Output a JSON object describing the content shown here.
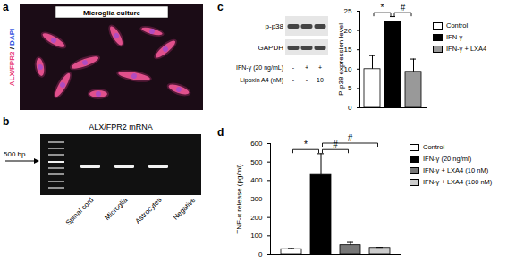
{
  "panel_a": {
    "letter": "a",
    "title": "Microglia culture",
    "stain": {
      "text": "ALX/FPR2",
      "color": "#e8407a"
    },
    "separator": "/",
    "counterstain": {
      "text": "DAPI",
      "color": "#3050e0"
    }
  },
  "panel_b": {
    "letter": "b",
    "title": "ALX/FPR2 mRNA",
    "marker": "500 bp",
    "lanes": [
      "Spinal cord",
      "Microglia",
      "Astrocytes",
      "Negative"
    ]
  },
  "panel_c": {
    "letter": "c",
    "blot_rows": [
      "p-p38",
      "GAPDH"
    ],
    "treatments": [
      {
        "label": "IFN-γ (20 ng/mL)",
        "lanes": [
          "-",
          "+",
          "+"
        ]
      },
      {
        "label": "Lipoxin A4 (nM)",
        "lanes": [
          "-",
          "-",
          "10"
        ]
      }
    ]
  },
  "panel_d": {
    "letter": "d"
  },
  "chart_data": [
    {
      "type": "bar",
      "ylabel": "P-p38 expression level",
      "categories": [
        null
      ],
      "series": [
        {
          "name": "Control",
          "color": "#ffffff",
          "values": [
            10
          ],
          "errors": [
            3.5
          ]
        },
        {
          "name": "IFN-γ",
          "color": "#000000",
          "values": [
            22.3
          ],
          "errors": [
            1.3
          ]
        },
        {
          "name": "IFN-γ + LXA4",
          "color": "#999999",
          "values": [
            9.3
          ],
          "errors": [
            3.3
          ]
        }
      ],
      "ylim": [
        0,
        25
      ],
      "yticks": [
        0,
        5,
        10,
        15,
        20,
        25
      ],
      "tick_labels": "y",
      "legend": "right",
      "annotations": [
        {
          "text": "*",
          "from": 0,
          "to": 1,
          "y": 24.5
        },
        {
          "text": "#",
          "from": 1,
          "to": 2,
          "y": 24.5
        }
      ]
    },
    {
      "type": "bar",
      "ylabel": "TNF-α release (pg/ml)",
      "categories": [
        null
      ],
      "series": [
        {
          "name": "Control",
          "color": "#ffffff",
          "values": [
            28
          ],
          "errors": [
            4
          ]
        },
        {
          "name": "IFN-γ (20 ng/ml)",
          "color": "#000000",
          "values": [
            430
          ],
          "errors": [
            115
          ]
        },
        {
          "name": "IFN-γ + LXA4 (10 nM)",
          "color": "#777777",
          "values": [
            50
          ],
          "errors": [
            15
          ]
        },
        {
          "name": "IFN-γ + LXA4 (100 nM)",
          "color": "#cccccc",
          "values": [
            35
          ],
          "errors": [
            3
          ]
        }
      ],
      "ylim": [
        0,
        600
      ],
      "yticks": [
        0,
        100,
        200,
        300,
        400,
        500,
        600
      ],
      "tick_labels": "y",
      "legend": "right",
      "annotations": [
        {
          "text": "*",
          "from": 0,
          "to": 1,
          "y": 565
        },
        {
          "text": "#",
          "from": 1,
          "to": 2,
          "y": 565
        },
        {
          "text": "#",
          "from": 1,
          "to": 3,
          "y": 600
        }
      ]
    }
  ]
}
